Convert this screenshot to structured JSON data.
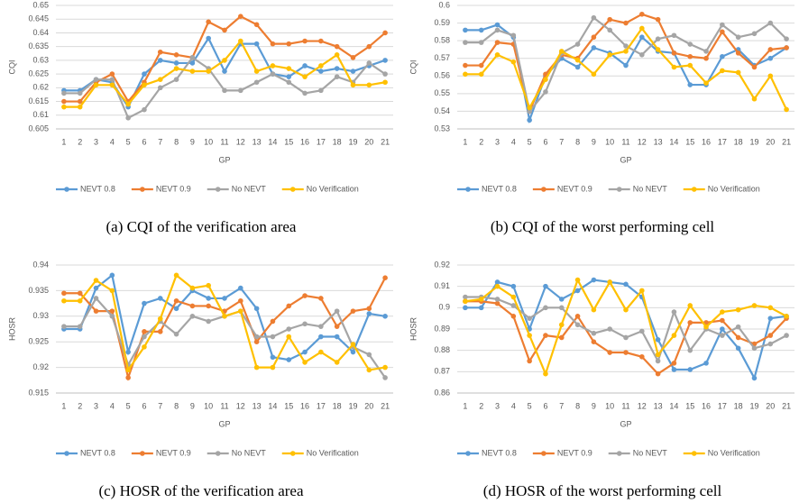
{
  "chart_data": [
    {
      "type": "line",
      "caption": "(a) CQI of the verification area",
      "y_label": "CQI",
      "x_label": "GP",
      "categories": [
        1,
        2,
        3,
        4,
        5,
        6,
        7,
        8,
        9,
        10,
        11,
        12,
        13,
        14,
        15,
        16,
        17,
        18,
        19,
        20,
        21
      ],
      "ylim": [
        0.605,
        0.65
      ],
      "yticks": [
        0.605,
        0.61,
        0.615,
        0.62,
        0.625,
        0.63,
        0.635,
        0.64,
        0.645,
        0.65
      ],
      "grid": true,
      "legend": "bottom",
      "series": [
        {
          "name": "NEVT 0.8",
          "color": "#5b9bd5",
          "values": [
            0.619,
            0.619,
            0.623,
            0.622,
            0.613,
            0.625,
            0.63,
            0.629,
            0.629,
            0.638,
            0.626,
            0.636,
            0.636,
            0.625,
            0.624,
            0.628,
            0.626,
            0.627,
            0.626,
            0.628,
            0.63
          ]
        },
        {
          "name": "NEVT 0.9",
          "color": "#ed7d31",
          "values": [
            0.615,
            0.615,
            0.622,
            0.625,
            0.615,
            0.622,
            0.633,
            0.632,
            0.631,
            0.644,
            0.641,
            0.646,
            0.643,
            0.636,
            0.636,
            0.637,
            0.637,
            0.635,
            0.631,
            0.635,
            0.64
          ]
        },
        {
          "name": "No NEVT",
          "color": "#a5a5a5",
          "values": [
            0.618,
            0.618,
            0.623,
            0.623,
            0.609,
            0.612,
            0.62,
            0.623,
            0.631,
            0.627,
            0.619,
            0.619,
            0.622,
            0.625,
            0.622,
            0.618,
            0.619,
            0.624,
            0.622,
            0.629,
            0.625
          ]
        },
        {
          "name": "No Verification",
          "color": "#ffc000",
          "values": [
            0.613,
            0.613,
            0.621,
            0.621,
            0.614,
            0.621,
            0.623,
            0.627,
            0.626,
            0.626,
            0.63,
            0.637,
            0.626,
            0.628,
            0.627,
            0.624,
            0.628,
            0.632,
            0.621,
            0.621,
            0.622
          ]
        }
      ]
    },
    {
      "type": "line",
      "caption": "(b) CQI of the worst performing cell",
      "y_label": "CQI",
      "x_label": "GP",
      "categories": [
        1,
        2,
        3,
        4,
        5,
        6,
        7,
        8,
        9,
        10,
        11,
        12,
        13,
        14,
        15,
        16,
        17,
        18,
        19,
        20,
        21
      ],
      "ylim": [
        0.53,
        0.6
      ],
      "yticks": [
        0.53,
        0.54,
        0.55,
        0.56,
        0.57,
        0.58,
        0.59,
        0.6
      ],
      "grid": true,
      "legend": "bottom",
      "series": [
        {
          "name": "NEVT 0.8",
          "color": "#5b9bd5",
          "values": [
            0.586,
            0.586,
            0.589,
            0.582,
            0.535,
            0.56,
            0.57,
            0.565,
            0.576,
            0.573,
            0.566,
            0.582,
            0.574,
            0.573,
            0.555,
            0.555,
            0.571,
            0.575,
            0.566,
            0.57,
            0.576
          ]
        },
        {
          "name": "NEVT 0.9",
          "color": "#ed7d31",
          "values": [
            0.566,
            0.566,
            0.579,
            0.578,
            0.54,
            0.561,
            0.572,
            0.57,
            0.582,
            0.592,
            0.59,
            0.595,
            0.592,
            0.573,
            0.571,
            0.57,
            0.585,
            0.573,
            0.565,
            0.575,
            0.576
          ]
        },
        {
          "name": "No NEVT",
          "color": "#a5a5a5",
          "values": [
            0.579,
            0.579,
            0.586,
            0.583,
            0.54,
            0.551,
            0.573,
            0.578,
            0.593,
            0.586,
            0.577,
            0.572,
            0.581,
            0.583,
            0.578,
            0.574,
            0.589,
            0.582,
            0.584,
            0.59,
            0.581
          ]
        },
        {
          "name": "No Verification",
          "color": "#ffc000",
          "values": [
            0.561,
            0.561,
            0.572,
            0.568,
            0.542,
            0.558,
            0.574,
            0.569,
            0.561,
            0.572,
            0.574,
            0.587,
            0.575,
            0.565,
            0.566,
            0.556,
            0.563,
            0.562,
            0.547,
            0.56,
            0.541
          ]
        }
      ]
    },
    {
      "type": "line",
      "caption": "(c) HOSR of the verification area",
      "y_label": "HOSR",
      "x_label": "GP",
      "categories": [
        1,
        2,
        3,
        4,
        5,
        6,
        7,
        8,
        9,
        10,
        11,
        12,
        13,
        14,
        15,
        16,
        17,
        18,
        19,
        20,
        21
      ],
      "ylim": [
        0.915,
        0.94
      ],
      "yticks": [
        0.915,
        0.92,
        0.925,
        0.93,
        0.935,
        0.94
      ],
      "grid": true,
      "legend": "bottom",
      "series": [
        {
          "name": "NEVT 0.8",
          "color": "#5b9bd5",
          "values": [
            0.9275,
            0.9275,
            0.9355,
            0.938,
            0.923,
            0.9325,
            0.9335,
            0.9315,
            0.935,
            0.9335,
            0.9335,
            0.9355,
            0.9315,
            0.922,
            0.9215,
            0.923,
            0.926,
            0.926,
            0.923,
            0.9305,
            0.93
          ]
        },
        {
          "name": "NEVT 0.9",
          "color": "#ed7d31",
          "values": [
            0.9345,
            0.9345,
            0.931,
            0.931,
            0.918,
            0.927,
            0.927,
            0.933,
            0.932,
            0.932,
            0.931,
            0.933,
            0.925,
            0.929,
            0.932,
            0.934,
            0.9335,
            0.928,
            0.931,
            0.9315,
            0.9375
          ]
        },
        {
          "name": "No NEVT",
          "color": "#a5a5a5",
          "values": [
            0.928,
            0.928,
            0.9335,
            0.93,
            0.9205,
            0.926,
            0.929,
            0.9265,
            0.93,
            0.929,
            0.93,
            0.931,
            0.926,
            0.926,
            0.9275,
            0.9285,
            0.928,
            0.931,
            0.924,
            0.9225,
            0.918
          ]
        },
        {
          "name": "No Verification",
          "color": "#ffc000",
          "values": [
            0.933,
            0.933,
            0.937,
            0.935,
            0.9195,
            0.924,
            0.9295,
            0.938,
            0.9355,
            0.936,
            0.93,
            0.931,
            0.92,
            0.92,
            0.926,
            0.921,
            0.923,
            0.921,
            0.9245,
            0.9195,
            0.92
          ]
        }
      ]
    },
    {
      "type": "line",
      "caption": "(d) HOSR of the worst performing cell",
      "y_label": "HOSR",
      "x_label": "GP",
      "categories": [
        1,
        2,
        3,
        4,
        5,
        6,
        7,
        8,
        9,
        10,
        11,
        12,
        13,
        14,
        15,
        16,
        17,
        18,
        19,
        20,
        21
      ],
      "ylim": [
        0.86,
        0.92
      ],
      "yticks": [
        0.86,
        0.87,
        0.88,
        0.89,
        0.9,
        0.91,
        0.92
      ],
      "grid": true,
      "legend": "bottom",
      "series": [
        {
          "name": "NEVT 0.8",
          "color": "#5b9bd5",
          "values": [
            0.9,
            0.9,
            0.912,
            0.91,
            0.89,
            0.91,
            0.904,
            0.908,
            0.913,
            0.912,
            0.911,
            0.905,
            0.885,
            0.871,
            0.871,
            0.874,
            0.89,
            0.881,
            0.867,
            0.895,
            0.896
          ]
        },
        {
          "name": "NEVT 0.9",
          "color": "#ed7d31",
          "values": [
            0.903,
            0.903,
            0.902,
            0.896,
            0.875,
            0.887,
            0.886,
            0.896,
            0.884,
            0.879,
            0.879,
            0.877,
            0.869,
            0.874,
            0.893,
            0.893,
            0.894,
            0.886,
            0.883,
            0.887,
            0.895
          ]
        },
        {
          "name": "No NEVT",
          "color": "#a5a5a5",
          "values": [
            0.905,
            0.905,
            0.904,
            0.901,
            0.895,
            0.9,
            0.9,
            0.892,
            0.888,
            0.89,
            0.886,
            0.889,
            0.875,
            0.898,
            0.88,
            0.89,
            0.887,
            0.891,
            0.881,
            0.883,
            0.887
          ]
        },
        {
          "name": "No Verification",
          "color": "#ffc000",
          "values": [
            0.903,
            0.904,
            0.91,
            0.905,
            0.887,
            0.869,
            0.892,
            0.913,
            0.899,
            0.912,
            0.899,
            0.908,
            0.878,
            0.887,
            0.901,
            0.891,
            0.898,
            0.899,
            0.901,
            0.9,
            0.896
          ]
        }
      ]
    }
  ]
}
